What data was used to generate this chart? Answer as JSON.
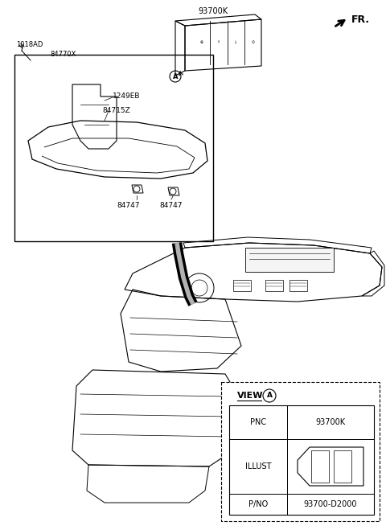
{
  "bg_color": "#ffffff",
  "fr_label": "FR.",
  "label_93700K_top": "93700K",
  "label_1018AD": "1018AD",
  "label_84770X": "84770X",
  "label_1249EB": "1249EB",
  "label_84715Z": "84715Z",
  "label_84747a": "84747",
  "label_84747b": "84747",
  "view_pnc": "93700K",
  "view_pno": "93700-D2000",
  "view_title": "VIEW",
  "view_pnc_label": "PNC",
  "view_illust_label": "ILLUST",
  "view_pno_label": "P/NO"
}
